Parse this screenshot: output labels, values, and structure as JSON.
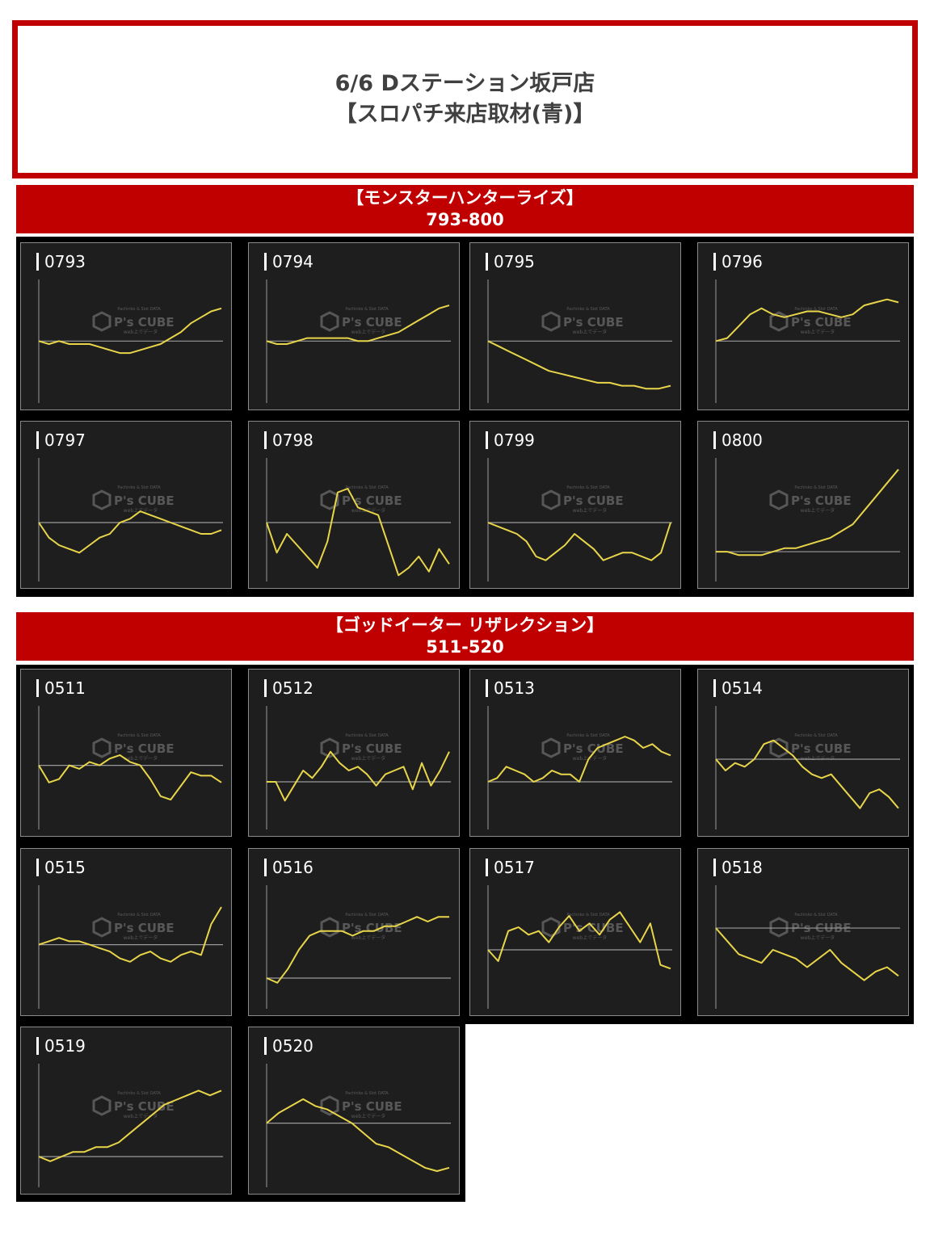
{
  "header": {
    "line1": "6/6 Dステーション坂戸店",
    "line2": "【スロパチ来店取材(青)】"
  },
  "watermark": {
    "top": "Pachinko & Slot DATA",
    "logo": "P's CUBE",
    "bottom": "web上でデータ"
  },
  "colors": {
    "accent_red": "#c00000",
    "line": "#e8d54a",
    "panel_bg": "#1e1e1e"
  },
  "sections": [
    {
      "title": "【モンスターハンターライズ】",
      "range": "793-800",
      "panels": [
        {
          "label": "0793"
        },
        {
          "label": "0794"
        },
        {
          "label": "0795"
        },
        {
          "label": "0796"
        },
        {
          "label": "0797"
        },
        {
          "label": "0798"
        },
        {
          "label": "0799"
        },
        {
          "label": "0800"
        }
      ]
    },
    {
      "title": "【ゴッドイーター リザレクション】",
      "range": "511-520",
      "panels": [
        {
          "label": "0511"
        },
        {
          "label": "0512"
        },
        {
          "label": "0513"
        },
        {
          "label": "0514"
        },
        {
          "label": "0515"
        },
        {
          "label": "0516"
        },
        {
          "label": "0517"
        },
        {
          "label": "0518"
        },
        {
          "label": "0519"
        },
        {
          "label": "0520"
        }
      ]
    }
  ],
  "chart_data": [
    {
      "type": "line",
      "title": "0793",
      "ylim": [
        -20,
        18
      ],
      "values": [
        0,
        -1,
        0,
        -1,
        -1,
        -1,
        -2,
        -3,
        -4,
        -4,
        -3,
        -2,
        -1,
        1,
        3,
        6,
        8,
        10,
        11
      ]
    },
    {
      "type": "line",
      "title": "0794",
      "ylim": [
        -20,
        18
      ],
      "values": [
        0,
        -1,
        -1,
        0,
        1,
        1,
        1,
        1,
        1,
        0,
        0,
        1,
        2,
        3,
        5,
        7,
        9,
        11,
        12
      ]
    },
    {
      "type": "line",
      "title": "0795",
      "ylim": [
        -20,
        18
      ],
      "values": [
        0,
        -2,
        -4,
        -6,
        -8,
        -10,
        -11,
        -12,
        -13,
        -14,
        -14,
        -15,
        -15,
        -16,
        -16,
        -15
      ]
    },
    {
      "type": "line",
      "title": "0796",
      "ylim": [
        -20,
        18
      ],
      "values": [
        0,
        1,
        5,
        9,
        11,
        9,
        8,
        9,
        10,
        10,
        9,
        8,
        9,
        12,
        13,
        14,
        13
      ]
    },
    {
      "type": "line",
      "title": "0797",
      "ylim": [
        -15,
        15
      ],
      "values": [
        0,
        -4,
        -6,
        -7,
        -8,
        -6,
        -4,
        -3,
        0,
        1,
        3,
        2,
        1,
        0,
        -1,
        -2,
        -3,
        -3,
        -2
      ]
    },
    {
      "type": "line",
      "title": "0798",
      "ylim": [
        -15,
        15
      ],
      "values": [
        0,
        -8,
        -3,
        -6,
        -9,
        -12,
        -5,
        8,
        9,
        4,
        3,
        2,
        -6,
        -14,
        -12,
        -9,
        -13,
        -7,
        -11
      ]
    },
    {
      "type": "line",
      "title": "0799",
      "ylim": [
        -15,
        15
      ],
      "values": [
        0,
        -1,
        -2,
        -3,
        -5,
        -9,
        -10,
        -8,
        -6,
        -3,
        -5,
        -7,
        -10,
        -9,
        -8,
        -8,
        -9,
        -10,
        -8,
        0
      ]
    },
    {
      "type": "line",
      "title": "0800",
      "ylim": [
        -8,
        25
      ],
      "values": [
        0,
        0,
        -1,
        -1,
        -1,
        0,
        1,
        1,
        2,
        3,
        4,
        6,
        8,
        12,
        16,
        20,
        24
      ]
    },
    {
      "type": "line",
      "title": "0511",
      "ylim": [
        -18,
        15
      ],
      "values": [
        0,
        -5,
        -4,
        0,
        -1,
        1,
        0,
        2,
        3,
        1,
        0,
        -4,
        -9,
        -10,
        -6,
        -2,
        -3,
        -3,
        -5
      ]
    },
    {
      "type": "line",
      "title": "0512",
      "ylim": [
        -12,
        18
      ],
      "values": [
        0,
        0,
        -5,
        -1,
        3,
        1,
        4,
        8,
        5,
        3,
        4,
        2,
        -1,
        2,
        3,
        4,
        -2,
        5,
        -1,
        3,
        8
      ]
    },
    {
      "type": "line",
      "title": "0513",
      "ylim": [
        -12,
        18
      ],
      "values": [
        0,
        1,
        4,
        3,
        2,
        0,
        1,
        3,
        2,
        2,
        0,
        6,
        9,
        10,
        11,
        12,
        11,
        9,
        10,
        8,
        7
      ]
    },
    {
      "type": "line",
      "title": "0514",
      "ylim": [
        -18,
        12
      ],
      "values": [
        0,
        -3,
        -1,
        -2,
        0,
        4,
        5,
        3,
        1,
        -2,
        -4,
        -5,
        -4,
        -7,
        -10,
        -13,
        -9,
        -8,
        -10,
        -13
      ]
    },
    {
      "type": "line",
      "title": "0515",
      "ylim": [
        -18,
        15
      ],
      "values": [
        0,
        1,
        2,
        1,
        1,
        0,
        -1,
        -2,
        -4,
        -5,
        -3,
        -2,
        -4,
        -5,
        -3,
        -2,
        -3,
        6,
        11
      ]
    },
    {
      "type": "line",
      "title": "0516",
      "ylim": [
        -6,
        18
      ],
      "values": [
        0,
        -1,
        2,
        6,
        9,
        10,
        10,
        10,
        9,
        10,
        10,
        11,
        11,
        12,
        13,
        12,
        13,
        13
      ]
    },
    {
      "type": "line",
      "title": "0517",
      "ylim": [
        -15,
        15
      ],
      "values": [
        0,
        -3,
        5,
        6,
        4,
        5,
        2,
        6,
        9,
        5,
        7,
        4,
        8,
        10,
        6,
        2,
        7,
        -4,
        -5
      ]
    },
    {
      "type": "line",
      "title": "0518",
      "ylim": [
        -18,
        8
      ],
      "values": [
        0,
        -3,
        -6,
        -7,
        -8,
        -5,
        -6,
        -7,
        -9,
        -7,
        -5,
        -8,
        -10,
        -12,
        -10,
        -9,
        -11
      ]
    },
    {
      "type": "line",
      "title": "0519",
      "ylim": [
        -6,
        18
      ],
      "values": [
        0,
        -1,
        0,
        1,
        1,
        2,
        2,
        3,
        5,
        7,
        9,
        11,
        12,
        13,
        14,
        13,
        14
      ]
    },
    {
      "type": "line",
      "title": "0520",
      "ylim": [
        -18,
        15
      ],
      "values": [
        0,
        3,
        5,
        7,
        5,
        4,
        2,
        0,
        -3,
        -6,
        -7,
        -9,
        -11,
        -13,
        -14,
        -13
      ]
    }
  ]
}
